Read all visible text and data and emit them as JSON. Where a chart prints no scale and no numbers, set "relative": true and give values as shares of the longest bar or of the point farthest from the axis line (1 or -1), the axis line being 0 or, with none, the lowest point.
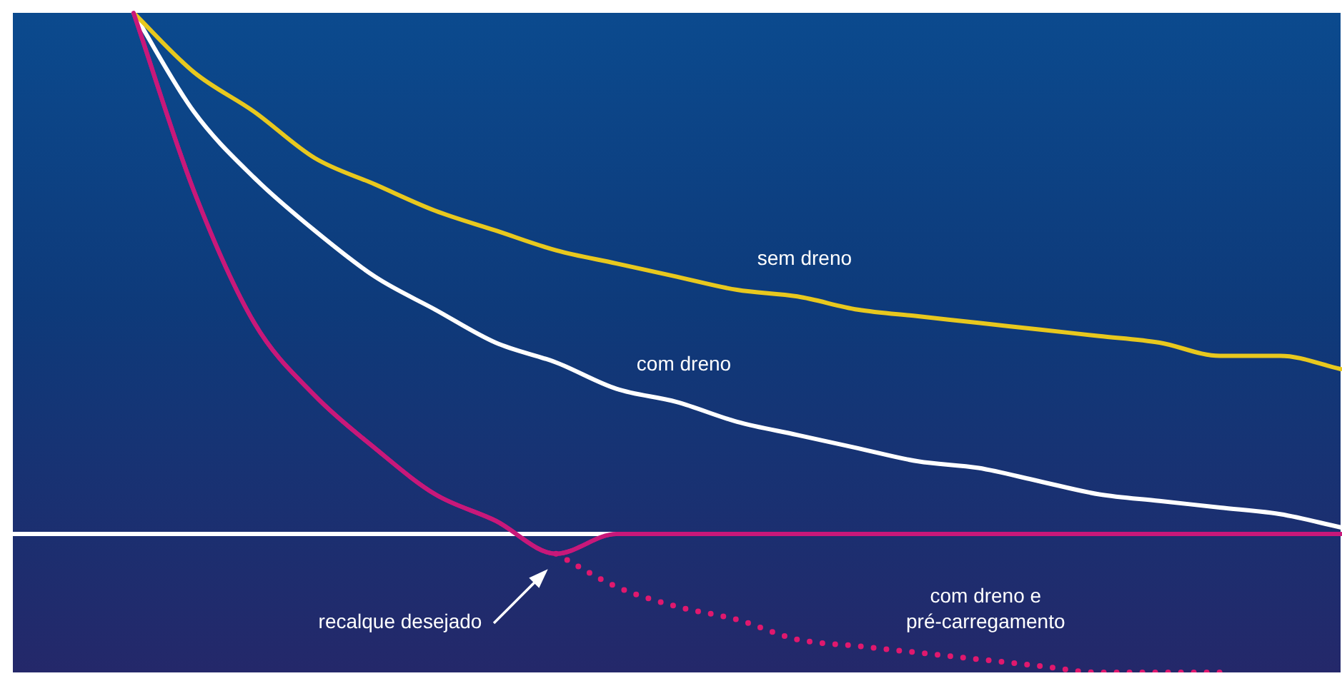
{
  "chart_data": {
    "type": "line",
    "relative": true,
    "legend": false,
    "grid": false,
    "marker": "none",
    "tick_labels": false,
    "categories": [
      null,
      null,
      null,
      null,
      null,
      null,
      null,
      null,
      null,
      null,
      null,
      null,
      null,
      null,
      null,
      null,
      null,
      null,
      null,
      null,
      null,
      null,
      null
    ],
    "series": [
      {
        "name": "sem dreno",
        "color": "#e8c81e",
        "line_style": "solid",
        "values": [
          null,
          null,
          1,
          0.91,
          0.85,
          0.78,
          0.74,
          0.7,
          0.67,
          0.64,
          0.62,
          0.6,
          0.58,
          0.57,
          0.55,
          0.54,
          0.53,
          0.52,
          0.51,
          0.5,
          0.48,
          0.48,
          0.46
        ]
      },
      {
        "name": "com dreno",
        "color": "#ffffff",
        "line_style": "solid",
        "values": [
          null,
          null,
          1,
          0.85,
          0.75,
          0.67,
          0.6,
          0.55,
          0.5,
          0.47,
          0.43,
          0.41,
          0.38,
          0.36,
          0.34,
          0.32,
          0.31,
          0.29,
          0.27,
          0.26,
          0.25,
          0.24,
          0.22
        ]
      },
      {
        "color": "#c8187a",
        "line_style": "solid",
        "values": [
          null,
          null,
          1,
          0.73,
          0.53,
          0.42,
          0.34,
          0.27,
          0.23,
          0.18,
          0.21,
          0.21,
          0.21,
          0.21,
          0.21,
          0.21,
          0.21,
          0.21,
          0.21,
          0.21,
          0.21,
          0.21,
          0.21
        ]
      },
      {
        "name": "com dreno e pré-carregamento",
        "color": "#e0186e",
        "line_style": "dotted",
        "values": [
          null,
          null,
          null,
          null,
          null,
          null,
          null,
          null,
          null,
          0.18,
          0.13,
          0.1,
          0.08,
          0.05,
          0.04,
          0.03,
          0.02,
          0.01,
          0,
          0,
          0,
          null,
          null
        ]
      }
    ],
    "ref_lines": [
      {
        "axis": "y",
        "value": 0.21,
        "color": "#ffffff"
      }
    ],
    "annotations": [
      "recalque desejado"
    ]
  }
}
